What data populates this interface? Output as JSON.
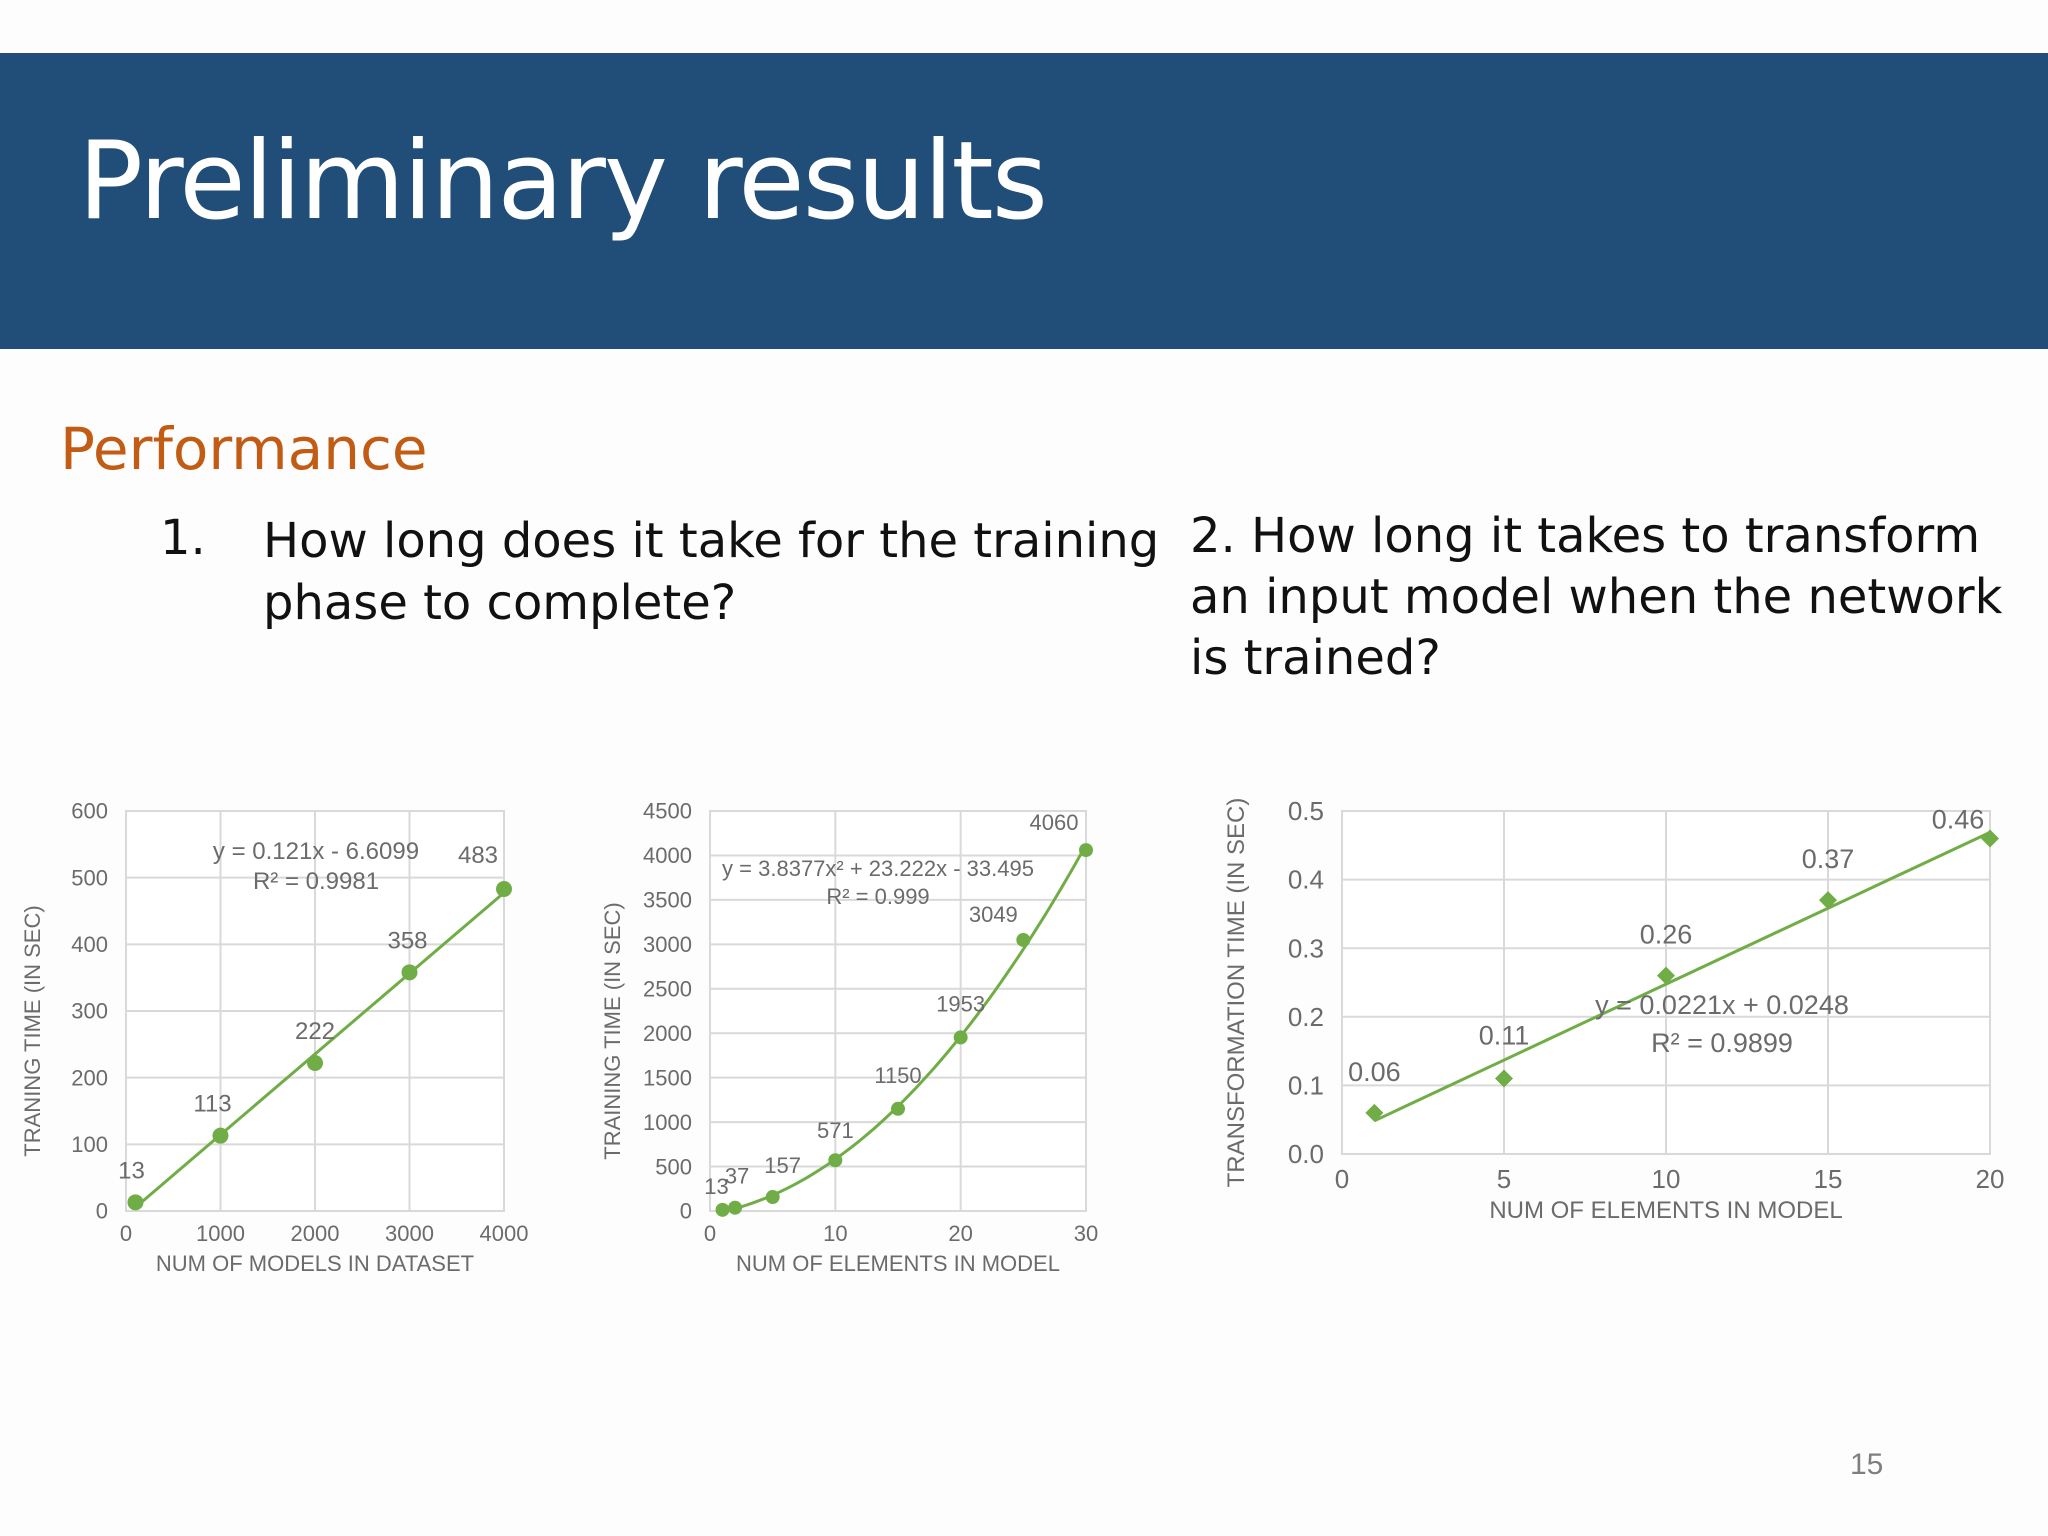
{
  "slide": {
    "title": "Preliminary results",
    "section": "Performance",
    "q1_number": "1.",
    "q1_text": "How long does it take for the training phase to complete?",
    "q2_text": "2. How long it takes to transform an input model when the network is trained?",
    "page_number": "15"
  },
  "colors": {
    "band": "#204e79",
    "heading": "#c25b14",
    "series": "#70ad47",
    "grid": "#d9d9d9"
  },
  "chart_data": [
    {
      "type": "scatter",
      "title": "",
      "xlabel": "NUM OF MODELS IN DATASET",
      "ylabel": "TRANING TIME (IN SEC)",
      "xlim": [
        0,
        4000
      ],
      "ylim": [
        0,
        600
      ],
      "xticks": [
        0,
        1000,
        2000,
        3000,
        4000
      ],
      "yticks": [
        0,
        100,
        200,
        300,
        400,
        500,
        600
      ],
      "x": [
        100,
        1000,
        2000,
        3000,
        4000
      ],
      "y": [
        13,
        113,
        222,
        358,
        483
      ],
      "labels": [
        "13",
        "113",
        "222",
        "358",
        "483"
      ],
      "trendline": "linear",
      "equation": "y = 0.121x - 6.6099",
      "r2": "R² = 0.9981"
    },
    {
      "type": "scatter",
      "title": "",
      "xlabel": "NUM OF ELEMENTS IN MODEL",
      "ylabel": "TRAINING TIME (IN SEC)",
      "xlim": [
        0,
        30
      ],
      "ylim": [
        0,
        4500
      ],
      "xticks": [
        0,
        10,
        20,
        30
      ],
      "yticks": [
        0,
        500,
        1000,
        1500,
        2000,
        2500,
        3000,
        3500,
        4000,
        4500
      ],
      "x": [
        1,
        2,
        5,
        10,
        15,
        20,
        25,
        30
      ],
      "y": [
        13,
        37,
        157,
        571,
        1150,
        1953,
        3049,
        4060
      ],
      "labels": [
        "13",
        "37",
        "157",
        "571",
        "1150",
        "1953",
        "3049",
        "4060"
      ],
      "trendline": "polynomial",
      "equation": "y = 3.8377x² + 23.222x - 33.495",
      "r2": "R² = 0.999"
    },
    {
      "type": "scatter",
      "title": "",
      "xlabel": "NUM OF ELEMENTS IN MODEL",
      "ylabel": "TRANSFORMATION TIME (IN SEC)",
      "xlim": [
        0,
        20
      ],
      "ylim": [
        0,
        0.5
      ],
      "xticks": [
        0,
        5,
        10,
        15,
        20
      ],
      "yticks": [
        "0.0",
        "0.1",
        "0.2",
        "0.3",
        "0.4",
        "0.5"
      ],
      "x": [
        1,
        5,
        10,
        15,
        20
      ],
      "y": [
        0.06,
        0.11,
        0.26,
        0.37,
        0.46
      ],
      "labels": [
        "0.06",
        "0.11",
        "0.26",
        "0.37",
        "0.46"
      ],
      "trendline": "linear",
      "equation": "y = 0.0221x + 0.0248",
      "r2": "R² = 0.9899"
    }
  ]
}
